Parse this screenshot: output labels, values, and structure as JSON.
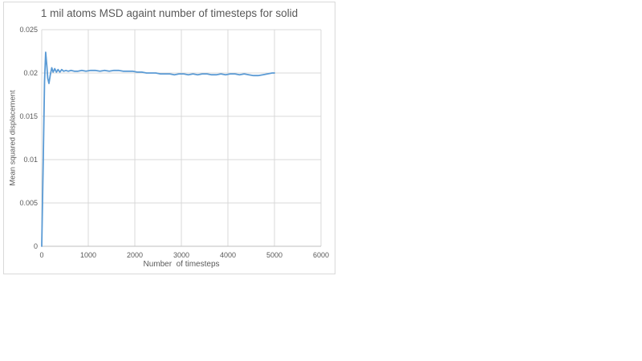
{
  "chart_data": {
    "type": "line",
    "title": "1 mil atoms MSD againt number of timesteps for solid",
    "xlabel": "Number  of timesteps",
    "ylabel": "Mean squared displacement",
    "xlim": [
      0,
      6000
    ],
    "ylim": [
      0,
      0.025
    ],
    "grid": true,
    "legend": false,
    "x_ticks": [
      0,
      1000,
      2000,
      3000,
      4000,
      5000,
      6000
    ],
    "y_ticks": [
      0,
      0.005,
      0.01,
      0.015,
      0.02,
      0.025
    ],
    "x_tick_labels": [
      "0",
      "1000",
      "2000",
      "3000",
      "4000",
      "5000",
      "6000"
    ],
    "y_tick_labels": [
      "0",
      "0.005",
      "0.01",
      "0.015",
      "0.02",
      "0.025"
    ],
    "series": [
      {
        "color": "#5B9BD5",
        "x": [
          0,
          30,
          60,
          85,
          110,
          130,
          155,
          185,
          215,
          245,
          280,
          315,
          350,
          390,
          430,
          470,
          520,
          570,
          630,
          700,
          780,
          860,
          950,
          1050,
          1150,
          1250,
          1350,
          1450,
          1550,
          1650,
          1750,
          1850,
          1950,
          2050,
          2150,
          2250,
          2350,
          2450,
          2550,
          2650,
          2750,
          2850,
          2950,
          3050,
          3150,
          3250,
          3350,
          3450,
          3550,
          3650,
          3750,
          3850,
          3950,
          4050,
          4150,
          4250,
          4350,
          4450,
          4550,
          4650,
          4750,
          4850,
          4950,
          5000
        ],
        "y": [
          0,
          0.009,
          0.019,
          0.0224,
          0.0208,
          0.0194,
          0.0188,
          0.0198,
          0.0206,
          0.0201,
          0.0205,
          0.0201,
          0.0204,
          0.0201,
          0.0204,
          0.0202,
          0.0203,
          0.0202,
          0.0203,
          0.0202,
          0.0202,
          0.0203,
          0.0202,
          0.0203,
          0.0203,
          0.0202,
          0.0203,
          0.0202,
          0.0203,
          0.0203,
          0.0202,
          0.0202,
          0.0202,
          0.0201,
          0.0201,
          0.02,
          0.02,
          0.02,
          0.0199,
          0.0199,
          0.0199,
          0.0198,
          0.0199,
          0.0199,
          0.0198,
          0.0199,
          0.0198,
          0.0199,
          0.0199,
          0.0198,
          0.0198,
          0.0199,
          0.0198,
          0.0199,
          0.0199,
          0.0198,
          0.0199,
          0.0198,
          0.0197,
          0.0197,
          0.0198,
          0.0199,
          0.02,
          0.02
        ]
      }
    ],
    "colors": {
      "line": "#5B9BD5",
      "gridline": "#d9d9d9",
      "axis_line": "#bfbfbf",
      "text": "#595959",
      "frame_border": "#d9d9d9",
      "background": "#ffffff"
    }
  }
}
